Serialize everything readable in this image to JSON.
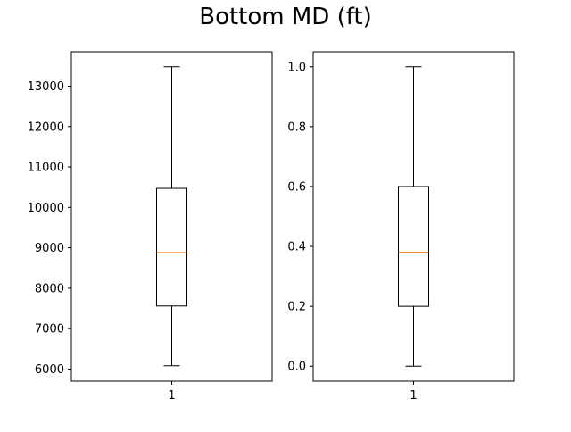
{
  "figure": {
    "title": "Bottom MD (ft)"
  },
  "chart_data": [
    {
      "type": "box",
      "title": "",
      "xlabel": "",
      "ylabel": "",
      "categories": [
        "1"
      ],
      "ylim": [
        5700,
        13850
      ],
      "yticks": [
        6000,
        7000,
        8000,
        9000,
        10000,
        11000,
        12000,
        13000
      ],
      "ytick_labels": [
        "6000",
        "7000",
        "8000",
        "9000",
        "10000",
        "11000",
        "12000",
        "13000"
      ],
      "grid": false,
      "boxes": [
        {
          "label": "1",
          "whisker_low": 6080,
          "q1": 7560,
          "median": 8880,
          "q3": 10470,
          "whisker_high": 13480
        }
      ]
    },
    {
      "type": "box",
      "title": "",
      "xlabel": "",
      "ylabel": "",
      "categories": [
        "1"
      ],
      "ylim": [
        -0.05,
        1.05
      ],
      "yticks": [
        0.0,
        0.2,
        0.4,
        0.6,
        0.8,
        1.0
      ],
      "ytick_labels": [
        "0.0",
        "0.2",
        "0.4",
        "0.6",
        "0.8",
        "1.0"
      ],
      "grid": false,
      "boxes": [
        {
          "label": "1",
          "whisker_low": 0.0,
          "q1": 0.2,
          "median": 0.38,
          "q3": 0.6,
          "whisker_high": 1.0
        }
      ]
    }
  ],
  "colors": {
    "median": "#ff7f0e",
    "box": "#000000",
    "axes": "#000000"
  }
}
